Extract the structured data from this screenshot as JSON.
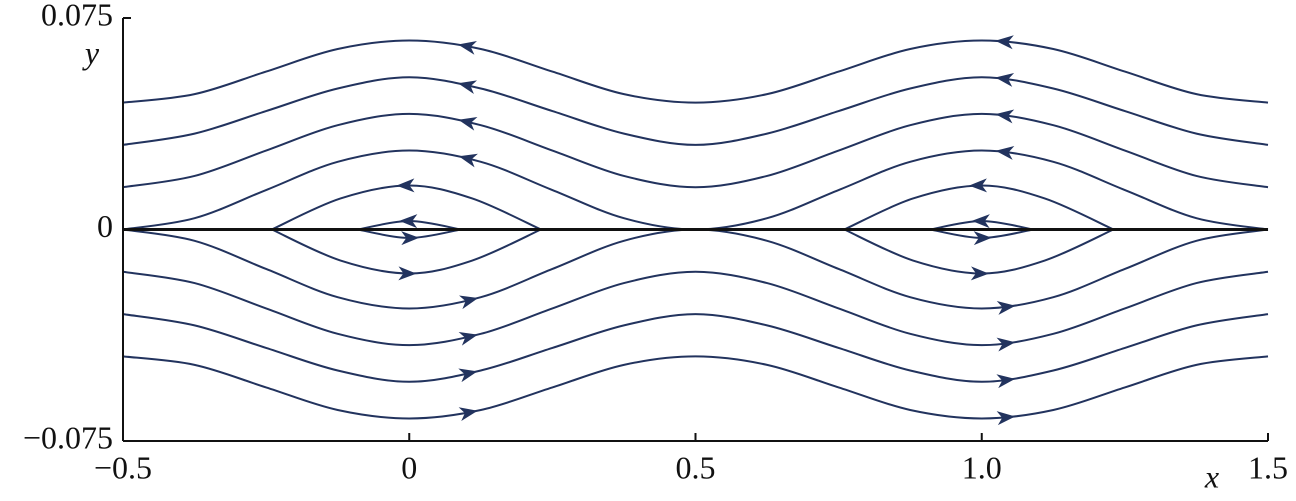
{
  "chart_data": {
    "type": "streamline",
    "x_label": "x",
    "y_label": "y",
    "xlim": [
      -0.5,
      1.5
    ],
    "ylim": [
      -0.075,
      0.075
    ],
    "xticks": [
      {
        "value": -0.5,
        "label": "−0.5"
      },
      0,
      0.5,
      {
        "value": 1,
        "label": "1.0"
      },
      1.5
    ],
    "yticks": [
      {
        "value": -0.075,
        "label": "−0.075"
      },
      0,
      0.075
    ],
    "zero_line": true,
    "color": "#22335e",
    "series": [
      {
        "x": [
          -0.5,
          -0.375,
          -0.25,
          -0.125,
          0,
          0.125,
          0.25,
          0.375,
          0.5,
          0.625,
          0.75,
          0.875,
          1,
          1.125,
          1.25,
          1.375,
          1.5
        ],
        "values": [
          0.045,
          0.048,
          0.056,
          0.064,
          0.067,
          0.064,
          0.056,
          0.048,
          0.045,
          0.048,
          0.056,
          0.064,
          0.067,
          0.064,
          0.056,
          0.048,
          0.045
        ]
      },
      {
        "x": [
          -0.5,
          -0.375,
          -0.25,
          -0.125,
          0,
          0.125,
          0.25,
          0.375,
          0.5,
          0.625,
          0.75,
          0.875,
          1,
          1.125,
          1.25,
          1.375,
          1.5
        ],
        "values": [
          0.03,
          0.034,
          0.042,
          0.05,
          0.054,
          0.05,
          0.042,
          0.034,
          0.03,
          0.034,
          0.042,
          0.05,
          0.054,
          0.05,
          0.042,
          0.034,
          0.03
        ]
      },
      {
        "x": [
          -0.5,
          -0.375,
          -0.25,
          -0.125,
          0,
          0.125,
          0.25,
          0.375,
          0.5,
          0.625,
          0.75,
          0.875,
          1,
          1.125,
          1.25,
          1.375,
          1.5
        ],
        "values": [
          0.015,
          0.019,
          0.028,
          0.037,
          0.041,
          0.037,
          0.028,
          0.019,
          0.015,
          0.019,
          0.028,
          0.037,
          0.041,
          0.037,
          0.028,
          0.019,
          0.015
        ]
      },
      {
        "x": [
          -0.5,
          -0.375,
          -0.25,
          -0.125,
          0,
          0.125,
          0.25,
          0.375,
          0.5,
          0.625,
          0.75,
          0.875,
          1,
          1.125,
          1.25,
          1.375,
          1.5
        ],
        "values": [
          0,
          0.004,
          0.014,
          0.024,
          0.028,
          0.024,
          0.014,
          0.004,
          0,
          0.004,
          0.014,
          0.024,
          0.028,
          0.024,
          0.014,
          0.004,
          0
        ]
      },
      {
        "x": [
          -0.24,
          -0.12,
          0,
          0.11,
          0.23,
          0.5,
          0.76,
          0.88,
          1,
          1.11,
          1.23
        ],
        "values": [
          0,
          0.011,
          0.0156,
          0.011,
          0,
          null,
          0,
          0.011,
          0.0156,
          0.011,
          0
        ]
      },
      {
        "x": [
          -0.09,
          0,
          0.09,
          0.5,
          0.91,
          1,
          1.09
        ],
        "values": [
          0,
          0.003,
          0,
          null,
          0,
          0.003,
          0
        ]
      },
      {
        "x": [
          -0.09,
          0,
          0.09,
          0.5,
          0.91,
          1,
          1.09
        ],
        "values": [
          0,
          -0.003,
          0,
          null,
          0,
          -0.003,
          0
        ]
      },
      {
        "x": [
          -0.24,
          -0.12,
          0,
          0.11,
          0.23,
          0.5,
          0.76,
          0.88,
          1,
          1.11,
          1.23
        ],
        "values": [
          0,
          -0.011,
          -0.0156,
          -0.011,
          0,
          null,
          0,
          -0.011,
          -0.0156,
          -0.011,
          0
        ]
      },
      {
        "x": [
          -0.5,
          -0.375,
          -0.25,
          -0.125,
          0,
          0.125,
          0.25,
          0.375,
          0.5,
          0.625,
          0.75,
          0.875,
          1,
          1.125,
          1.25,
          1.375,
          1.5
        ],
        "values": [
          0,
          -0.004,
          -0.014,
          -0.024,
          -0.028,
          -0.024,
          -0.014,
          -0.004,
          0,
          -0.004,
          -0.014,
          -0.024,
          -0.028,
          -0.024,
          -0.014,
          -0.004,
          0
        ]
      },
      {
        "x": [
          -0.5,
          -0.375,
          -0.25,
          -0.125,
          0,
          0.125,
          0.25,
          0.375,
          0.5,
          0.625,
          0.75,
          0.875,
          1,
          1.125,
          1.25,
          1.375,
          1.5
        ],
        "values": [
          -0.015,
          -0.019,
          -0.028,
          -0.037,
          -0.041,
          -0.037,
          -0.028,
          -0.019,
          -0.015,
          -0.019,
          -0.028,
          -0.037,
          -0.041,
          -0.037,
          -0.028,
          -0.019,
          -0.015
        ]
      },
      {
        "x": [
          -0.5,
          -0.375,
          -0.25,
          -0.125,
          0,
          0.125,
          0.25,
          0.375,
          0.5,
          0.625,
          0.75,
          0.875,
          1,
          1.125,
          1.25,
          1.375,
          1.5
        ],
        "values": [
          -0.03,
          -0.034,
          -0.042,
          -0.05,
          -0.054,
          -0.05,
          -0.042,
          -0.034,
          -0.03,
          -0.034,
          -0.042,
          -0.05,
          -0.054,
          -0.05,
          -0.042,
          -0.034,
          -0.03
        ]
      },
      {
        "x": [
          -0.5,
          -0.375,
          -0.25,
          -0.125,
          0,
          0.125,
          0.25,
          0.375,
          0.5,
          0.625,
          0.75,
          0.875,
          1,
          1.125,
          1.25,
          1.375,
          1.5
        ],
        "values": [
          -0.045,
          -0.048,
          -0.056,
          -0.064,
          -0.067,
          -0.064,
          -0.056,
          -0.048,
          -0.045,
          -0.048,
          -0.056,
          -0.064,
          -0.067,
          -0.064,
          -0.056,
          -0.048,
          -0.045
        ]
      }
    ]
  }
}
